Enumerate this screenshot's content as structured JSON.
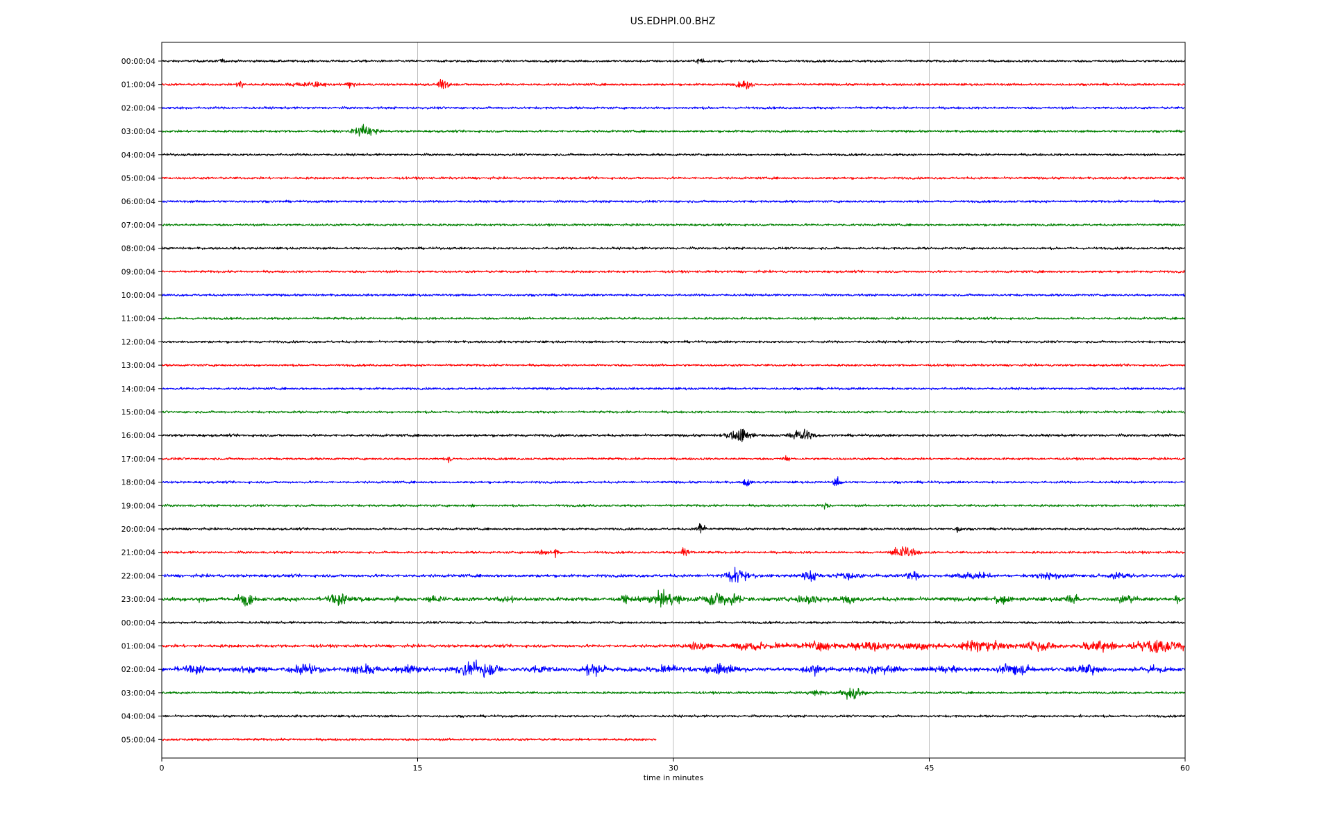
{
  "chart_data": {
    "type": "line",
    "title": "US.EDHPI.00.BHZ",
    "xlabel": "time in minutes",
    "ylabel": "",
    "xlim": [
      0,
      60
    ],
    "x_ticks": [
      0,
      15,
      30,
      45,
      60
    ],
    "x_tick_labels": [
      "0",
      "15",
      "30",
      "45",
      "60"
    ],
    "grid": "vertical at x ticks",
    "color_cycle": [
      "#000000",
      "#ff0000",
      "#0000ff",
      "#008000"
    ],
    "series": [
      {
        "label": "00:00:04",
        "color": "#000000",
        "end_minute": 60,
        "noise": 0.35,
        "events": [
          {
            "t": 3.5,
            "amp": 0.5,
            "dur": 0.4
          },
          {
            "t": 31.6,
            "amp": 1.8,
            "dur": 0.3
          }
        ]
      },
      {
        "label": "01:00:04",
        "color": "#ff0000",
        "end_minute": 60,
        "noise": 0.35,
        "events": [
          {
            "t": 4.6,
            "amp": 1.5,
            "dur": 0.3
          },
          {
            "t": 8.5,
            "amp": 0.7,
            "dur": 2.0
          },
          {
            "t": 11.1,
            "amp": 0.8,
            "dur": 0.4
          },
          {
            "t": 16.6,
            "amp": 1.3,
            "dur": 0.6
          },
          {
            "t": 34.2,
            "amp": 1.0,
            "dur": 0.8
          }
        ]
      },
      {
        "label": "02:00:04",
        "color": "#0000ff",
        "end_minute": 60,
        "noise": 0.35,
        "events": [
          {
            "t": 1.2,
            "amp": 0.5,
            "dur": 0.2
          }
        ]
      },
      {
        "label": "03:00:04",
        "color": "#008000",
        "end_minute": 60,
        "noise": 0.35,
        "events": [
          {
            "t": 11.9,
            "amp": 1.4,
            "dur": 1.2
          }
        ]
      },
      {
        "label": "04:00:04",
        "color": "#000000",
        "end_minute": 60,
        "noise": 0.35,
        "events": []
      },
      {
        "label": "05:00:04",
        "color": "#ff0000",
        "end_minute": 60,
        "noise": 0.35,
        "events": []
      },
      {
        "label": "06:00:04",
        "color": "#0000ff",
        "end_minute": 60,
        "noise": 0.35,
        "events": []
      },
      {
        "label": "07:00:04",
        "color": "#008000",
        "end_minute": 60,
        "noise": 0.35,
        "events": []
      },
      {
        "label": "08:00:04",
        "color": "#000000",
        "end_minute": 60,
        "noise": 0.35,
        "events": []
      },
      {
        "label": "09:00:04",
        "color": "#ff0000",
        "end_minute": 60,
        "noise": 0.35,
        "events": []
      },
      {
        "label": "10:00:04",
        "color": "#0000ff",
        "end_minute": 60,
        "noise": 0.35,
        "events": []
      },
      {
        "label": "11:00:04",
        "color": "#008000",
        "end_minute": 60,
        "noise": 0.35,
        "events": []
      },
      {
        "label": "12:00:04",
        "color": "#000000",
        "end_minute": 60,
        "noise": 0.35,
        "events": []
      },
      {
        "label": "13:00:04",
        "color": "#ff0000",
        "end_minute": 60,
        "noise": 0.35,
        "events": []
      },
      {
        "label": "14:00:04",
        "color": "#0000ff",
        "end_minute": 60,
        "noise": 0.35,
        "events": []
      },
      {
        "label": "15:00:04",
        "color": "#008000",
        "end_minute": 60,
        "noise": 0.35,
        "events": []
      },
      {
        "label": "16:00:04",
        "color": "#000000",
        "end_minute": 60,
        "noise": 0.4,
        "events": [
          {
            "t": 33.9,
            "amp": 1.6,
            "dur": 1.2
          },
          {
            "t": 37.6,
            "amp": 1.4,
            "dur": 1.2
          },
          {
            "t": 59.2,
            "amp": 0.5,
            "dur": 0.3
          }
        ]
      },
      {
        "label": "17:00:04",
        "color": "#ff0000",
        "end_minute": 60,
        "noise": 0.35,
        "events": [
          {
            "t": 16.9,
            "amp": 1.8,
            "dur": 0.2
          },
          {
            "t": 36.6,
            "amp": 0.8,
            "dur": 0.3
          }
        ]
      },
      {
        "label": "18:00:04",
        "color": "#0000ff",
        "end_minute": 60,
        "noise": 0.35,
        "events": [
          {
            "t": 34.3,
            "amp": 1.4,
            "dur": 0.3
          },
          {
            "t": 39.6,
            "amp": 1.2,
            "dur": 0.4
          }
        ]
      },
      {
        "label": "19:00:04",
        "color": "#008000",
        "end_minute": 60,
        "noise": 0.35,
        "events": [
          {
            "t": 18.2,
            "amp": 0.6,
            "dur": 0.3
          },
          {
            "t": 38.9,
            "amp": 1.0,
            "dur": 0.4
          }
        ]
      },
      {
        "label": "20:00:04",
        "color": "#000000",
        "end_minute": 60,
        "noise": 0.35,
        "events": [
          {
            "t": 31.6,
            "amp": 1.6,
            "dur": 0.4
          },
          {
            "t": 46.7,
            "amp": 0.8,
            "dur": 0.3
          }
        ]
      },
      {
        "label": "21:00:04",
        "color": "#ff0000",
        "end_minute": 60,
        "noise": 0.35,
        "events": [
          {
            "t": 22.5,
            "amp": 0.8,
            "dur": 0.9
          },
          {
            "t": 23.1,
            "amp": 1.9,
            "dur": 0.2
          },
          {
            "t": 30.7,
            "amp": 1.7,
            "dur": 0.4
          },
          {
            "t": 43.6,
            "amp": 1.8,
            "dur": 1.1
          }
        ]
      },
      {
        "label": "22:00:04",
        "color": "#0000ff",
        "end_minute": 60,
        "noise": 0.45,
        "events": [
          {
            "t": 33.8,
            "amp": 1.5,
            "dur": 1.4
          },
          {
            "t": 38.0,
            "amp": 1.3,
            "dur": 0.8
          },
          {
            "t": 40.1,
            "amp": 0.9,
            "dur": 1.5
          },
          {
            "t": 44.0,
            "amp": 1.2,
            "dur": 0.8
          },
          {
            "t": 47.5,
            "amp": 0.9,
            "dur": 1.6
          },
          {
            "t": 52.0,
            "amp": 0.8,
            "dur": 1.5
          },
          {
            "t": 56.0,
            "amp": 0.8,
            "dur": 1.5
          },
          {
            "t": 59.6,
            "amp": 0.9,
            "dur": 0.4
          }
        ]
      },
      {
        "label": "23:00:04",
        "color": "#008000",
        "end_minute": 60,
        "noise": 0.6,
        "events": [
          {
            "t": 2.3,
            "amp": 0.8,
            "dur": 0.4
          },
          {
            "t": 4.9,
            "amp": 1.5,
            "dur": 0.8
          },
          {
            "t": 10.5,
            "amp": 1.4,
            "dur": 1.6
          },
          {
            "t": 13.8,
            "amp": 0.9,
            "dur": 0.5
          },
          {
            "t": 16.3,
            "amp": 0.7,
            "dur": 1.2
          },
          {
            "t": 20.4,
            "amp": 0.7,
            "dur": 1.2
          },
          {
            "t": 27.2,
            "amp": 0.9,
            "dur": 0.6
          },
          {
            "t": 29.5,
            "amp": 1.4,
            "dur": 1.8
          },
          {
            "t": 32.8,
            "amp": 1.6,
            "dur": 2.2
          },
          {
            "t": 38.0,
            "amp": 1.3,
            "dur": 1.4
          },
          {
            "t": 40.1,
            "amp": 0.9,
            "dur": 1.0
          },
          {
            "t": 49.2,
            "amp": 1.0,
            "dur": 1.0
          },
          {
            "t": 53.4,
            "amp": 1.0,
            "dur": 0.8
          },
          {
            "t": 56.5,
            "amp": 0.9,
            "dur": 1.0
          },
          {
            "t": 59.5,
            "amp": 0.9,
            "dur": 0.4
          }
        ]
      },
      {
        "label": "00:00:04",
        "color": "#000000",
        "end_minute": 60,
        "noise": 0.35,
        "events": []
      },
      {
        "label": "01:00:04",
        "color": "#ff0000",
        "end_minute": 60,
        "noise": 0.45,
        "events": [
          {
            "t": 31.5,
            "amp": 1.2,
            "dur": 1.2
          },
          {
            "t": 35.0,
            "amp": 1.0,
            "dur": 3.0
          },
          {
            "t": 38.5,
            "amp": 1.0,
            "dur": 2.0
          },
          {
            "t": 41.5,
            "amp": 1.2,
            "dur": 2.2
          },
          {
            "t": 44.5,
            "amp": 1.0,
            "dur": 2.0
          },
          {
            "t": 48.0,
            "amp": 1.3,
            "dur": 2.5
          },
          {
            "t": 51.5,
            "amp": 1.2,
            "dur": 2.0
          },
          {
            "t": 55.0,
            "amp": 1.2,
            "dur": 2.0
          },
          {
            "t": 58.5,
            "amp": 1.4,
            "dur": 3.0
          }
        ]
      },
      {
        "label": "02:00:04",
        "color": "#0000ff",
        "end_minute": 60,
        "noise": 0.6,
        "events": [
          {
            "t": 2.0,
            "amp": 1.0,
            "dur": 2.0
          },
          {
            "t": 5.0,
            "amp": 0.9,
            "dur": 1.6
          },
          {
            "t": 8.4,
            "amp": 1.3,
            "dur": 1.6
          },
          {
            "t": 12.0,
            "amp": 1.2,
            "dur": 1.8
          },
          {
            "t": 14.5,
            "amp": 0.9,
            "dur": 1.4
          },
          {
            "t": 18.5,
            "amp": 1.8,
            "dur": 2.2
          },
          {
            "t": 22.0,
            "amp": 0.7,
            "dur": 1.2
          },
          {
            "t": 25.3,
            "amp": 1.4,
            "dur": 1.4
          },
          {
            "t": 29.5,
            "amp": 1.0,
            "dur": 2.0
          },
          {
            "t": 32.8,
            "amp": 1.2,
            "dur": 2.0
          },
          {
            "t": 38.2,
            "amp": 1.2,
            "dur": 1.0
          },
          {
            "t": 42.0,
            "amp": 1.2,
            "dur": 2.2
          },
          {
            "t": 45.8,
            "amp": 0.9,
            "dur": 1.4
          },
          {
            "t": 50.0,
            "amp": 1.2,
            "dur": 1.8
          },
          {
            "t": 54.2,
            "amp": 1.1,
            "dur": 1.8
          },
          {
            "t": 58.0,
            "amp": 0.8,
            "dur": 1.2
          }
        ]
      },
      {
        "label": "03:00:04",
        "color": "#008000",
        "end_minute": 60,
        "noise": 0.35,
        "events": [
          {
            "t": 38.5,
            "amp": 0.6,
            "dur": 1.2
          },
          {
            "t": 40.6,
            "amp": 1.4,
            "dur": 1.2
          }
        ]
      },
      {
        "label": "04:00:04",
        "color": "#000000",
        "end_minute": 60,
        "noise": 0.35,
        "events": [
          {
            "t": 53.8,
            "amp": 0.6,
            "dur": 0.2
          }
        ]
      },
      {
        "label": "05:00:04",
        "color": "#ff0000",
        "end_minute": 29,
        "noise": 0.35,
        "events": []
      }
    ]
  }
}
